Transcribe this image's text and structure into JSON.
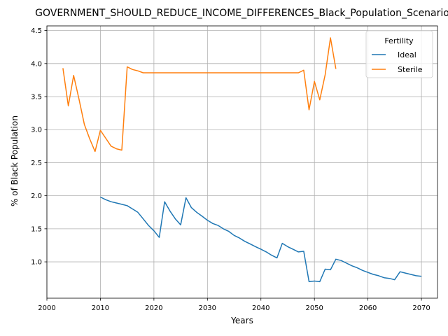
{
  "chart_data": {
    "type": "line",
    "title": "GOVERNMENT_SHOULD_REDUCE_INCOME_DIFFERENCES_Black_Population_Scenario",
    "xlabel": "Years",
    "ylabel": "% of Black Population",
    "xlim": [
      2000,
      2073
    ],
    "ylim": [
      0.45,
      4.57
    ],
    "xticks": [
      2000,
      2010,
      2020,
      2030,
      2040,
      2050,
      2060,
      2070
    ],
    "yticks": [
      1.0,
      1.5,
      2.0,
      2.5,
      3.0,
      3.5,
      4.0,
      4.5
    ],
    "xtick_labels": [
      "2000",
      "2010",
      "2020",
      "2030",
      "2040",
      "2050",
      "2060",
      "2070"
    ],
    "ytick_labels": [
      "1.0",
      "1.5",
      "2.0",
      "2.5",
      "3.0",
      "3.5",
      "4.0",
      "4.5"
    ],
    "grid": true,
    "legend": {
      "title": "Fertility",
      "placement": "top-right"
    },
    "series": [
      {
        "name": "Ideal",
        "color": "#1f77b4",
        "x": [
          2010,
          2011,
          2012,
          2013,
          2014,
          2015,
          2016,
          2017,
          2018,
          2019,
          2020,
          2021,
          2022,
          2023,
          2024,
          2025,
          2026,
          2027,
          2028,
          2029,
          2030,
          2031,
          2032,
          2033,
          2034,
          2035,
          2036,
          2037,
          2038,
          2039,
          2040,
          2041,
          2042,
          2043,
          2044,
          2045,
          2046,
          2047,
          2048,
          2049,
          2050,
          2051,
          2052,
          2053,
          2054,
          2055,
          2056,
          2057,
          2058,
          2059,
          2060,
          2061,
          2062,
          2063,
          2064,
          2065,
          2066,
          2067,
          2068,
          2069,
          2070
        ],
        "y": [
          1.98,
          1.94,
          1.91,
          1.89,
          1.87,
          1.85,
          1.8,
          1.75,
          1.65,
          1.55,
          1.47,
          1.37,
          1.91,
          1.77,
          1.65,
          1.56,
          1.97,
          1.82,
          1.75,
          1.69,
          1.63,
          1.58,
          1.55,
          1.5,
          1.46,
          1.4,
          1.36,
          1.31,
          1.27,
          1.23,
          1.19,
          1.15,
          1.1,
          1.06,
          1.28,
          1.23,
          1.19,
          1.15,
          1.16,
          0.7,
          0.71,
          0.7,
          0.89,
          0.88,
          1.04,
          1.02,
          0.98,
          0.94,
          0.91,
          0.87,
          0.84,
          0.81,
          0.79,
          0.76,
          0.75,
          0.73,
          0.85,
          0.83,
          0.81,
          0.79,
          0.78
        ]
      },
      {
        "name": "Sterile",
        "color": "#ff7f0e",
        "x": [
          2003,
          2004,
          2005,
          2006,
          2007,
          2008,
          2009,
          2010,
          2011,
          2012,
          2013,
          2014,
          2015,
          2016,
          2017,
          2018,
          2019,
          2020,
          2021,
          2022,
          2023,
          2024,
          2025,
          2026,
          2027,
          2028,
          2029,
          2030,
          2031,
          2032,
          2033,
          2034,
          2035,
          2036,
          2037,
          2038,
          2039,
          2040,
          2041,
          2042,
          2043,
          2044,
          2045,
          2046,
          2047,
          2048,
          2049,
          2050,
          2051,
          2052,
          2053,
          2054
        ],
        "y": [
          3.93,
          3.36,
          3.82,
          3.46,
          3.08,
          2.86,
          2.67,
          2.99,
          2.87,
          2.75,
          2.71,
          2.69,
          3.95,
          3.91,
          3.89,
          3.86,
          3.86,
          3.86,
          3.86,
          3.86,
          3.86,
          3.86,
          3.86,
          3.86,
          3.86,
          3.86,
          3.86,
          3.86,
          3.86,
          3.86,
          3.86,
          3.86,
          3.86,
          3.86,
          3.86,
          3.86,
          3.86,
          3.86,
          3.86,
          3.86,
          3.86,
          3.86,
          3.86,
          3.86,
          3.86,
          3.9,
          3.3,
          3.73,
          3.45,
          3.83,
          4.39,
          3.92
        ]
      }
    ]
  }
}
